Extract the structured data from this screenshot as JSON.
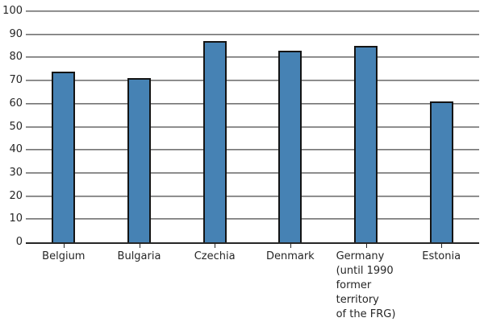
{
  "chart_data": {
    "type": "bar",
    "title": "",
    "xlabel": "",
    "ylabel": "",
    "categories": [
      "Belgium",
      "Bulgaria",
      "Czechia",
      "Denmark",
      "Germany\n(until 1990\nformer\nterritory\nof the FRG)",
      "Estonia"
    ],
    "values": [
      74,
      71,
      87,
      83,
      85,
      61
    ],
    "ylim": [
      0,
      100
    ],
    "yticks": [
      0,
      10,
      20,
      30,
      40,
      50,
      60,
      70,
      80,
      90,
      100
    ],
    "grid": "horizontal",
    "legend_position": "none",
    "colors": {
      "bar_fill": "#4682b4",
      "bar_border": "#141414",
      "gridline": "#7f7f7f",
      "axis_line": "#262626",
      "tick_text": "#262626",
      "background": "#ffffff"
    }
  }
}
